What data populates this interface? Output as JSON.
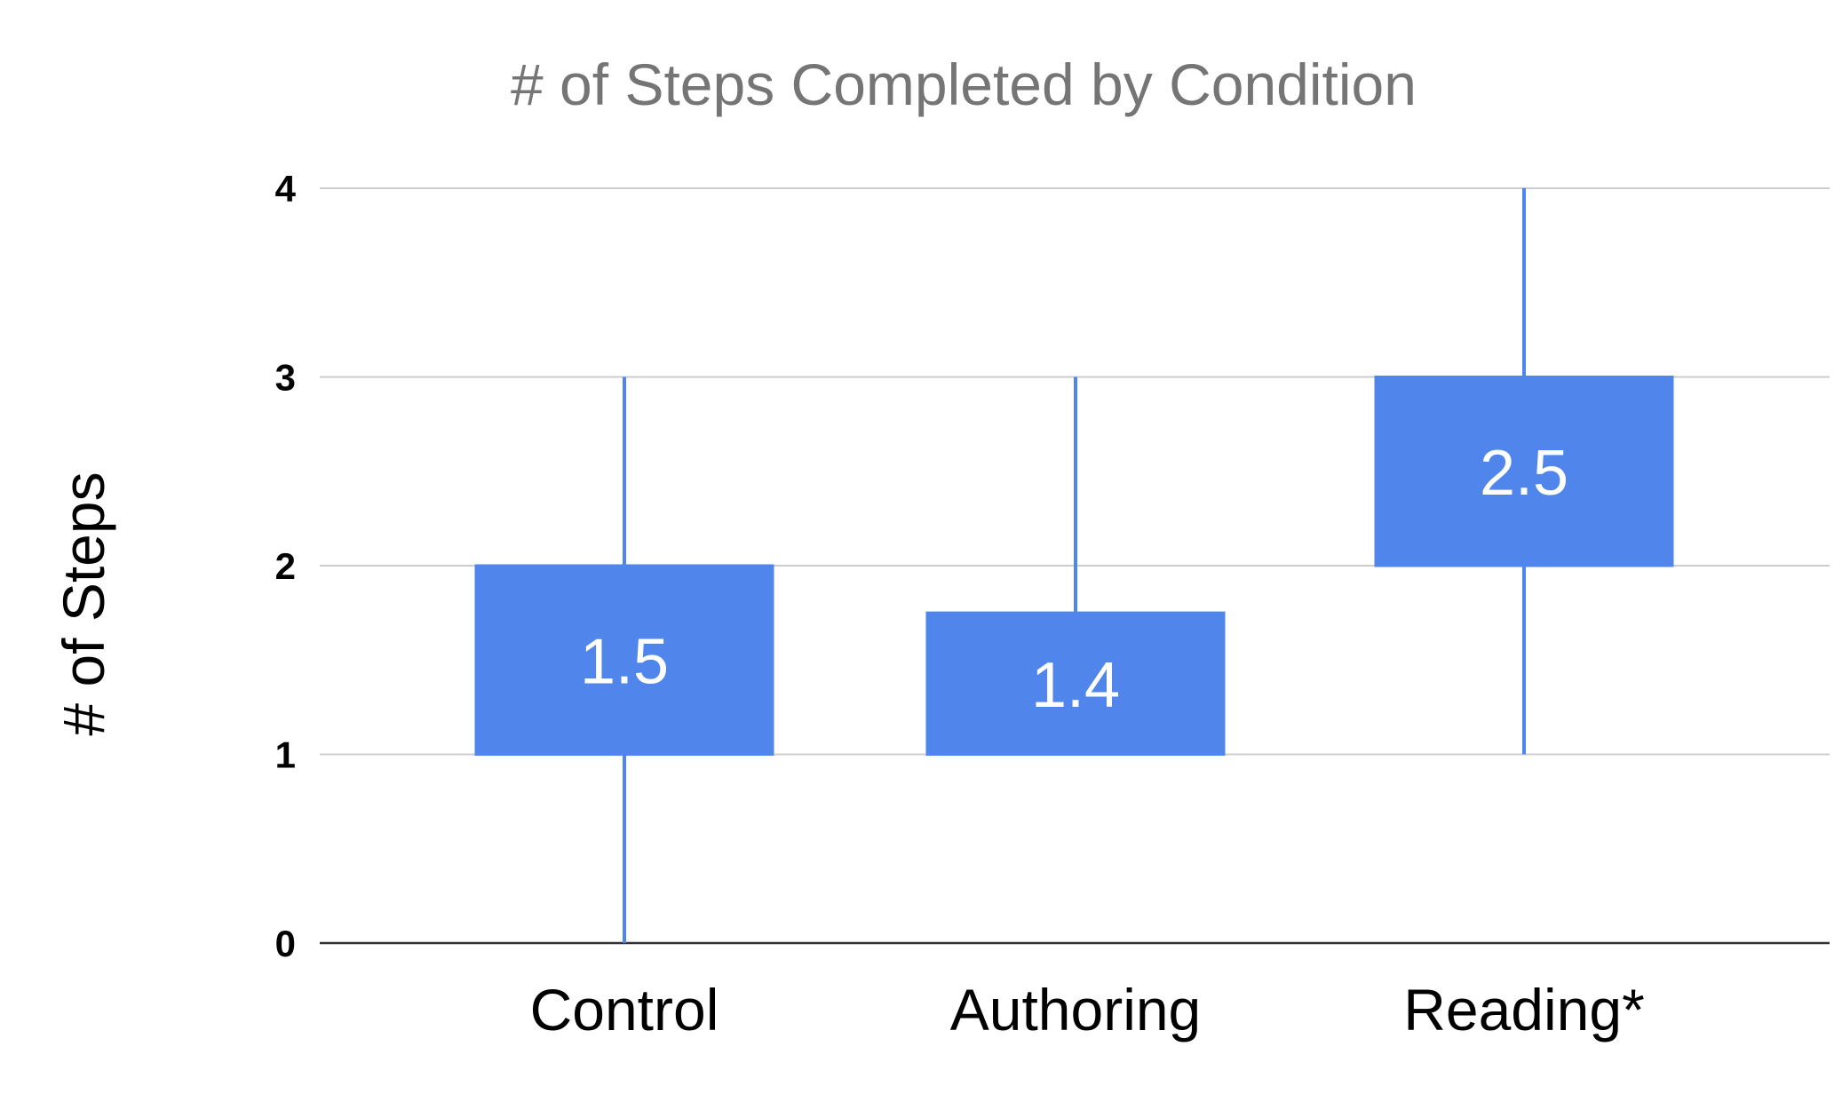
{
  "chart_data": {
    "type": "box",
    "title": "# of Steps Completed by Condition",
    "xlabel": "",
    "ylabel": "# of Steps",
    "ylim": [
      0,
      4
    ],
    "y_ticks": [
      "0",
      "1",
      "2",
      "3",
      "4"
    ],
    "grid": true,
    "categories": [
      "Control",
      "Authoring",
      "Reading*"
    ],
    "colors": {
      "box": "#5086ec",
      "whisker": "#5086ec",
      "grid": "#cccccc"
    },
    "boxes": [
      {
        "category": "Control",
        "whisker_low": 0,
        "box_low": 1,
        "box_high": 2,
        "whisker_high": 3,
        "label": "1.5"
      },
      {
        "category": "Authoring",
        "whisker_low": 1,
        "box_low": 1,
        "box_high": 1.75,
        "whisker_high": 3,
        "label": "1.4"
      },
      {
        "category": "Reading*",
        "whisker_low": 1,
        "box_low": 2,
        "box_high": 3,
        "whisker_high": 4,
        "label": "2.5"
      }
    ]
  }
}
